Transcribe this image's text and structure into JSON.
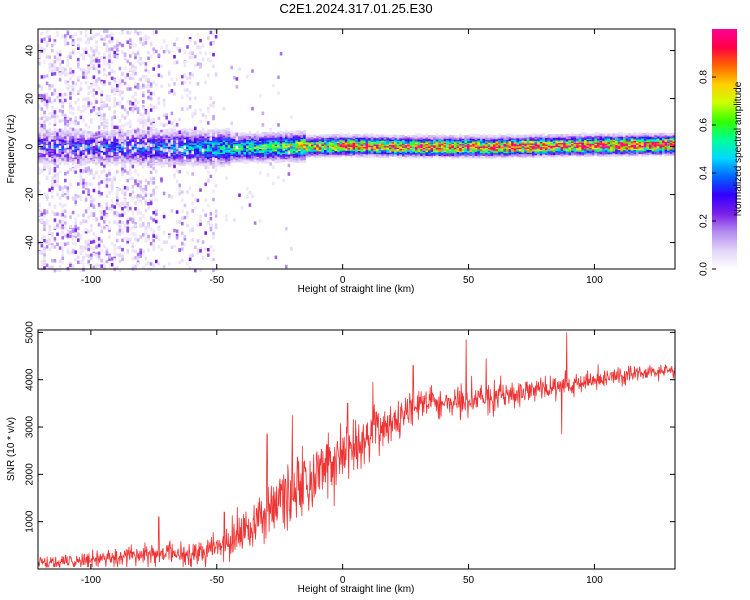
{
  "title": "C2E1.2024.317.01.25.E30",
  "chart_data": [
    {
      "type": "heatmap",
      "xlabel": "Height of straight line (km)",
      "ylabel": "Frequency (Hz)",
      "xlim": [
        -121,
        132
      ],
      "ylim": [
        -51,
        49
      ],
      "x_ticks": [
        -100,
        -50,
        0,
        50,
        100
      ],
      "y_ticks": [
        -40,
        -20,
        0,
        20,
        40
      ],
      "colorbar": {
        "label": "Normalized spectral amplitude",
        "range": [
          0,
          1
        ],
        "ticks": [
          0.0,
          0.2,
          0.4,
          0.6,
          0.8
        ],
        "colors": [
          "#ffffff",
          "#e2d4f8",
          "#b48cf0",
          "#7a1fe8",
          "#3300ff",
          "#0066ff",
          "#00d8ff",
          "#00ff99",
          "#33ff00",
          "#ccff00",
          "#ffd000",
          "#ff6600",
          "#ff0044",
          "#ff0099"
        ]
      },
      "ridge": {
        "center_hz": [
          [
            -121,
            0.5
          ],
          [
            -50,
            0
          ],
          [
            -20,
            0.5
          ],
          [
            0,
            1
          ],
          [
            30,
            0.5
          ],
          [
            60,
            0.5
          ],
          [
            90,
            1
          ],
          [
            132,
            1.5
          ]
        ],
        "peak_amplitude": [
          [
            -121,
            0.3
          ],
          [
            -80,
            0.35
          ],
          [
            -50,
            0.45
          ],
          [
            -25,
            0.6
          ],
          [
            0,
            0.85
          ],
          [
            60,
            0.9
          ],
          [
            132,
            0.95
          ]
        ]
      },
      "grid": false,
      "legend": "none"
    },
    {
      "type": "line",
      "xlabel": "Height of straight line (km)",
      "ylabel": "SNR (10 * v/v)",
      "xlim": [
        -121,
        132
      ],
      "ylim": [
        0,
        5050
      ],
      "x_ticks": [
        -100,
        -50,
        0,
        50,
        100
      ],
      "y_ticks": [
        1000,
        2000,
        3000,
        4000,
        5000
      ],
      "series": [
        {
          "color": "#ee3333",
          "trend": [
            [
              -121,
              120
            ],
            [
              -100,
              180
            ],
            [
              -80,
              300
            ],
            [
              -60,
              350
            ],
            [
              -45,
              500
            ],
            [
              -38,
              900
            ],
            [
              -30,
              1300
            ],
            [
              -20,
              1600
            ],
            [
              -12,
              1900
            ],
            [
              -5,
              2200
            ],
            [
              0,
              2400
            ],
            [
              5,
              2600
            ],
            [
              12,
              2900
            ],
            [
              20,
              3100
            ],
            [
              26,
              3300
            ],
            [
              30,
              3500
            ],
            [
              40,
              3550
            ],
            [
              50,
              3600
            ],
            [
              60,
              3650
            ],
            [
              75,
              3750
            ],
            [
              90,
              3900
            ],
            [
              105,
              4050
            ],
            [
              120,
              4150
            ],
            [
              132,
              4200
            ]
          ],
          "noise_amplitude": [
            [
              -121,
              150
            ],
            [
              -80,
              250
            ],
            [
              -50,
              350
            ],
            [
              -30,
              800
            ],
            [
              -10,
              900
            ],
            [
              10,
              600
            ],
            [
              30,
              400
            ],
            [
              60,
              350
            ],
            [
              100,
              250
            ],
            [
              132,
              150
            ]
          ],
          "spikes": [
            [
              -73,
              1100
            ],
            [
              -47,
              1200
            ],
            [
              -30,
              2850
            ],
            [
              -20,
              3250
            ],
            [
              -16,
              2600
            ],
            [
              2,
              3500
            ],
            [
              12,
              3950
            ],
            [
              28,
              4300
            ],
            [
              49,
              4850
            ],
            [
              57,
              4450
            ],
            [
              89,
              5000
            ],
            [
              87,
              2850
            ]
          ]
        }
      ],
      "grid": false,
      "legend": "none"
    }
  ]
}
